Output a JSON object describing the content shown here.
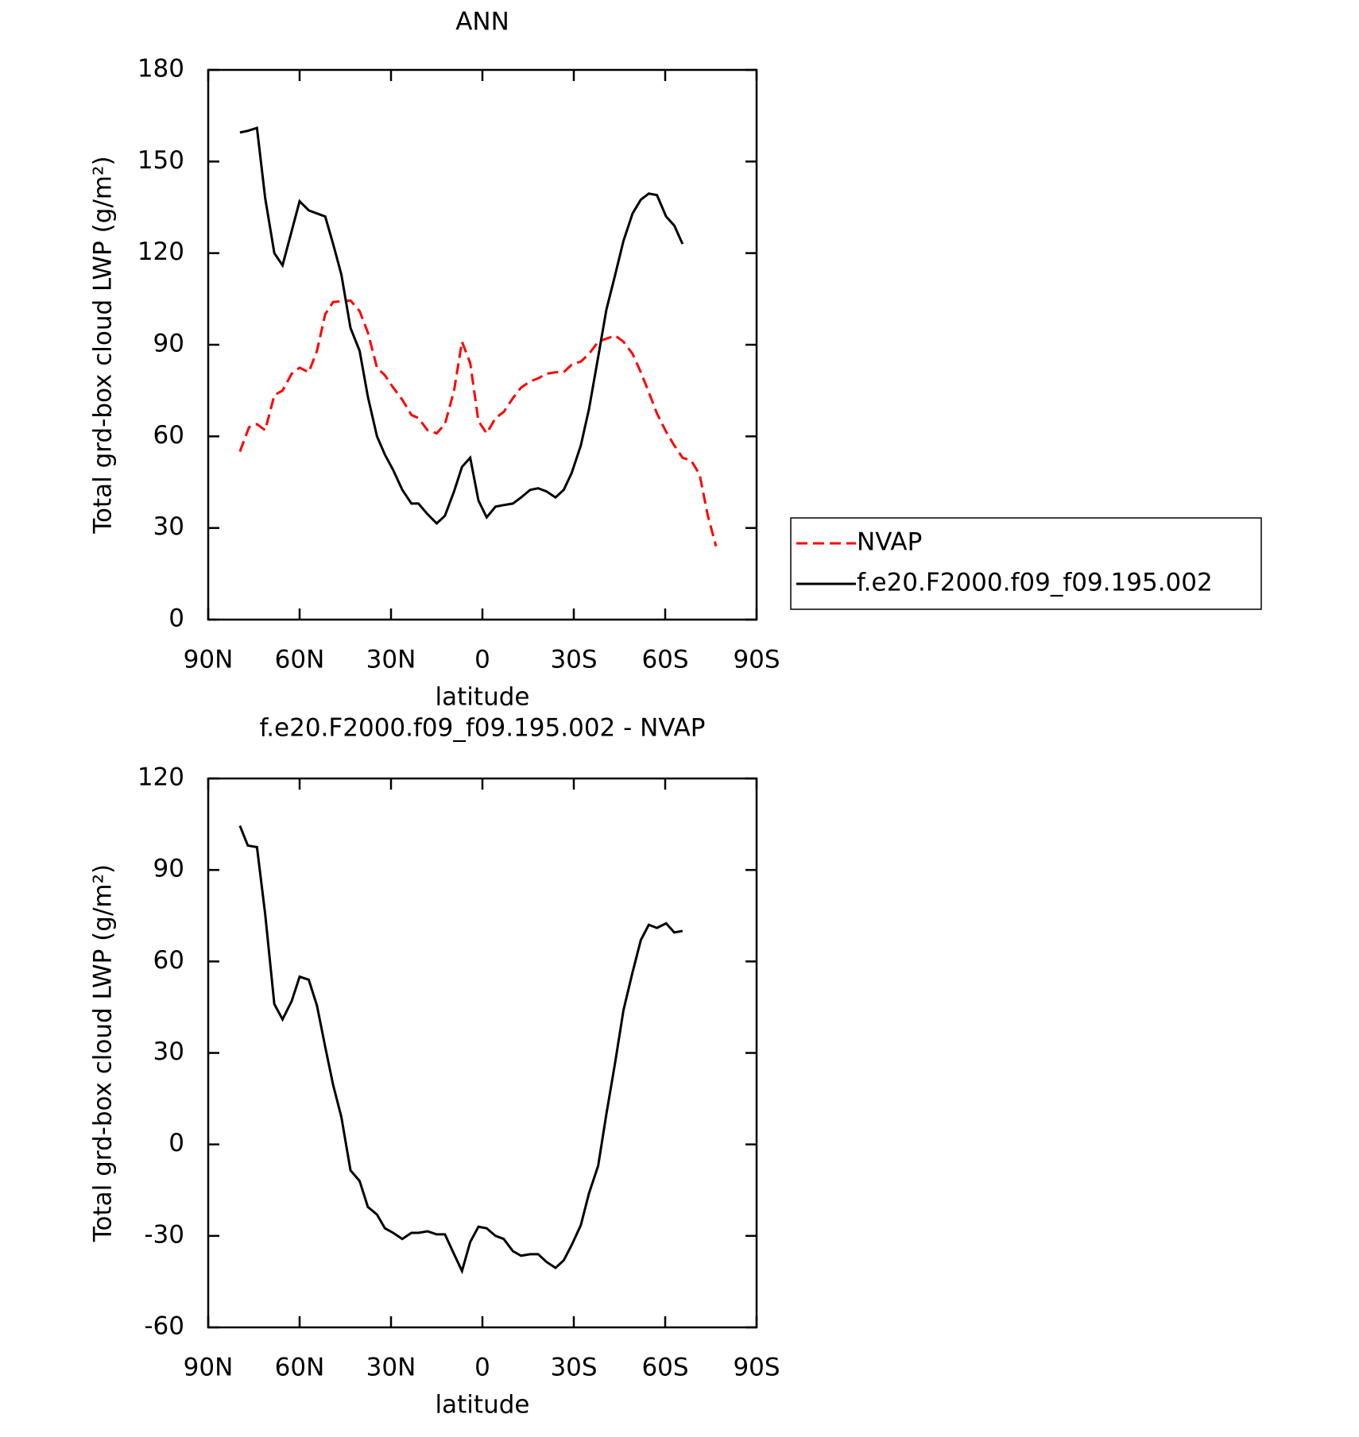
{
  "chart_data": [
    {
      "type": "line",
      "title": "ANN",
      "xlabel": "latitude",
      "ylabel": "Total grd-box cloud LWP (g/m²)",
      "xlim": [
        90,
        -90
      ],
      "xticks": [
        {
          "value": 90,
          "label": "90N"
        },
        {
          "value": 60,
          "label": "60N"
        },
        {
          "value": 30,
          "label": "30N"
        },
        0,
        {
          "value": -30,
          "label": "30S"
        },
        {
          "value": -60,
          "label": "60S"
        },
        {
          "value": -90,
          "label": "90S"
        }
      ],
      "ylim": [
        0,
        180
      ],
      "yticks": [
        0,
        30,
        60,
        90,
        120,
        150,
        180
      ],
      "legend": "right",
      "series": [
        {
          "name": "NVAP",
          "color": "#ff0000",
          "dash": "dashed",
          "x": [
            79.6,
            76.6,
            74,
            71.3,
            68.3,
            65.6,
            62.6,
            60,
            57,
            54.3,
            51.6,
            49,
            43.3,
            40.3,
            37.6,
            34.6,
            32,
            29.3,
            26.3,
            23.3,
            21,
            18,
            15,
            12.3,
            9.3,
            6.7,
            4,
            1.3,
            -1.4,
            -4.3,
            -7,
            -10,
            -12.7,
            -15.7,
            -18.3,
            -21,
            -24,
            -26.7,
            -29.3,
            -32.3,
            -35,
            -38,
            -40.7,
            -43.6,
            -46.3,
            -49.3,
            -52,
            -54.6,
            -57.3,
            -60.3,
            -63,
            -65.7,
            -68.6,
            -71.3,
            -74,
            -76.7
          ],
          "values": [
            55,
            63,
            64,
            62,
            73.5,
            75,
            80.5,
            82.5,
            81,
            88,
            100,
            104,
            104.5,
            101,
            94,
            82.5,
            80,
            76,
            72,
            67,
            66,
            62,
            61,
            64,
            75,
            91,
            84,
            65,
            61,
            66,
            68,
            72.5,
            76,
            78,
            79,
            80.5,
            81,
            81,
            83.5,
            84.5,
            87,
            91,
            92,
            93,
            91,
            87,
            81,
            74.5,
            67.5,
            61.5,
            57,
            53,
            52,
            47.5,
            34,
            24
          ]
        },
        {
          "name": "f.e20.F2000.f09_f09.195.002",
          "color": "#000000",
          "dash": "solid",
          "x": [
            79.6,
            77.2,
            74,
            71.3,
            68.3,
            65.6,
            63.2,
            60,
            57,
            51.6,
            49,
            46.3,
            43.3,
            40.3,
            37.6,
            34.6,
            32,
            29.3,
            26.3,
            23.3,
            21,
            18,
            15,
            12.3,
            9.3,
            6.7,
            4,
            1.3,
            -1.4,
            -4.3,
            -7,
            -10,
            -12.7,
            -15.7,
            -18.3,
            -21,
            -24,
            -26.7,
            -29.3,
            -32.3,
            -35,
            -38,
            -40.7,
            -43.6,
            -46.3,
            -49.3,
            -52,
            -54.6,
            -57.3,
            -60.3,
            -63,
            -65.7
          ],
          "values": [
            159.5,
            160,
            161,
            138,
            120,
            116,
            125,
            137,
            134,
            132,
            123,
            113,
            95.5,
            88,
            73,
            60,
            54,
            49,
            42.5,
            38,
            38,
            34.5,
            31.5,
            34,
            42,
            50,
            53,
            39,
            33.5,
            37,
            37.5,
            38,
            40,
            42.5,
            43,
            42,
            40,
            42.5,
            48,
            57,
            69,
            86,
            101.5,
            113,
            124,
            133,
            137.5,
            139.5,
            139,
            132,
            129,
            123
          ]
        }
      ]
    },
    {
      "type": "line",
      "title": "f.e20.F2000.f09_f09.195.002 - NVAP",
      "xlabel": "latitude",
      "ylabel": "Total grd-box cloud LWP (g/m²)",
      "xlim": [
        90,
        -90
      ],
      "xticks": [
        {
          "value": 90,
          "label": "90N"
        },
        {
          "value": 60,
          "label": "60N"
        },
        {
          "value": 30,
          "label": "30N"
        },
        0,
        {
          "value": -30,
          "label": "30S"
        },
        {
          "value": -60,
          "label": "60S"
        },
        {
          "value": -90,
          "label": "90S"
        }
      ],
      "ylim": [
        -60,
        120
      ],
      "yticks": [
        -60,
        -30,
        0,
        30,
        60,
        90,
        120
      ],
      "series": [
        {
          "color": "#000000",
          "dash": "solid",
          "x": [
            79.6,
            77,
            74,
            71.3,
            68.3,
            65.6,
            62.6,
            60,
            57,
            54.3,
            51.6,
            49,
            46.3,
            43.3,
            40.3,
            37.6,
            34.6,
            32,
            29.3,
            26.3,
            23.3,
            21,
            18,
            15,
            12.3,
            9.3,
            6.7,
            4,
            1.3,
            -1.4,
            -4.3,
            -7,
            -10,
            -12.7,
            -15.7,
            -18.3,
            -21,
            -24,
            -26.7,
            -29.3,
            -32.3,
            -35,
            -38,
            -40.7,
            -43.6,
            -46.3,
            -49.3,
            -52,
            -54.6,
            -57.3,
            -60.3,
            -63,
            -65.7
          ],
          "values": [
            104.5,
            98,
            97.5,
            75.5,
            46,
            41,
            47,
            55,
            54,
            45.5,
            32,
            19.5,
            9,
            -8.5,
            -12,
            -20.5,
            -23,
            -27.5,
            -29,
            -31,
            -29,
            -29,
            -28.5,
            -29.5,
            -29.5,
            -36,
            -41.5,
            -32,
            -27,
            -27.5,
            -30,
            -31,
            -35,
            -36.5,
            -36,
            -36,
            -38.5,
            -40.5,
            -38,
            -33,
            -26.5,
            -16,
            -7,
            10,
            27,
            44,
            56.5,
            67,
            72,
            71,
            72.5,
            69.5,
            70
          ]
        }
      ]
    }
  ]
}
